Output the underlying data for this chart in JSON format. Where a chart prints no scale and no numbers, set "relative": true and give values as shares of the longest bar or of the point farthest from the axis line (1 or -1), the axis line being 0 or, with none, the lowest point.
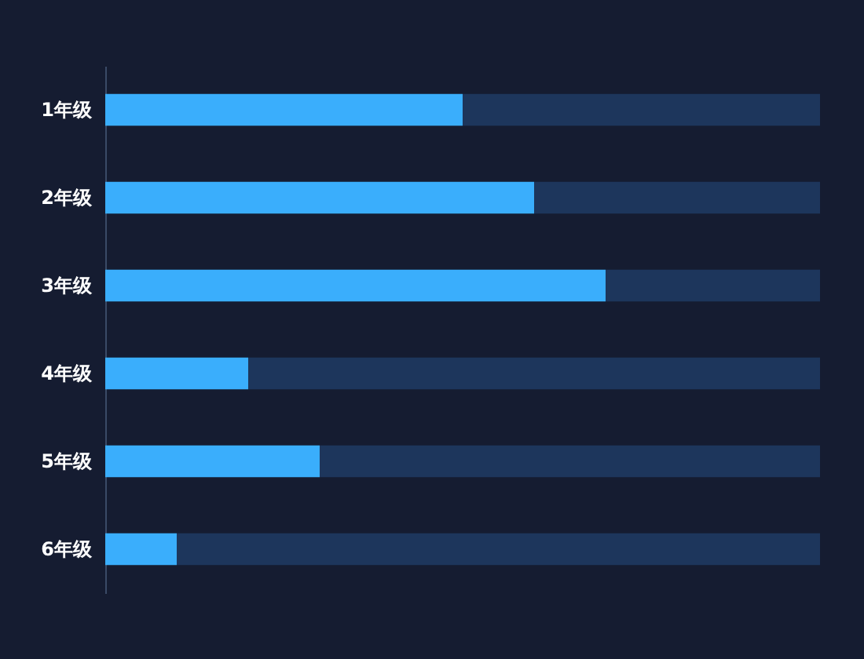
{
  "chart_data": {
    "type": "bar",
    "orientation": "horizontal",
    "stacked": true,
    "relative": true,
    "categories": [
      "1年级",
      "2年级",
      "3年级",
      "4年级",
      "5年级",
      "6年级"
    ],
    "series": [
      {
        "color": "#3aaefc",
        "values": [
          0.5,
          0.6,
          0.7,
          0.2,
          0.3,
          0.1
        ]
      },
      {
        "color": "#1d365c",
        "values": [
          0.5,
          0.4,
          0.3,
          0.8,
          0.7,
          0.9
        ]
      }
    ]
  }
}
